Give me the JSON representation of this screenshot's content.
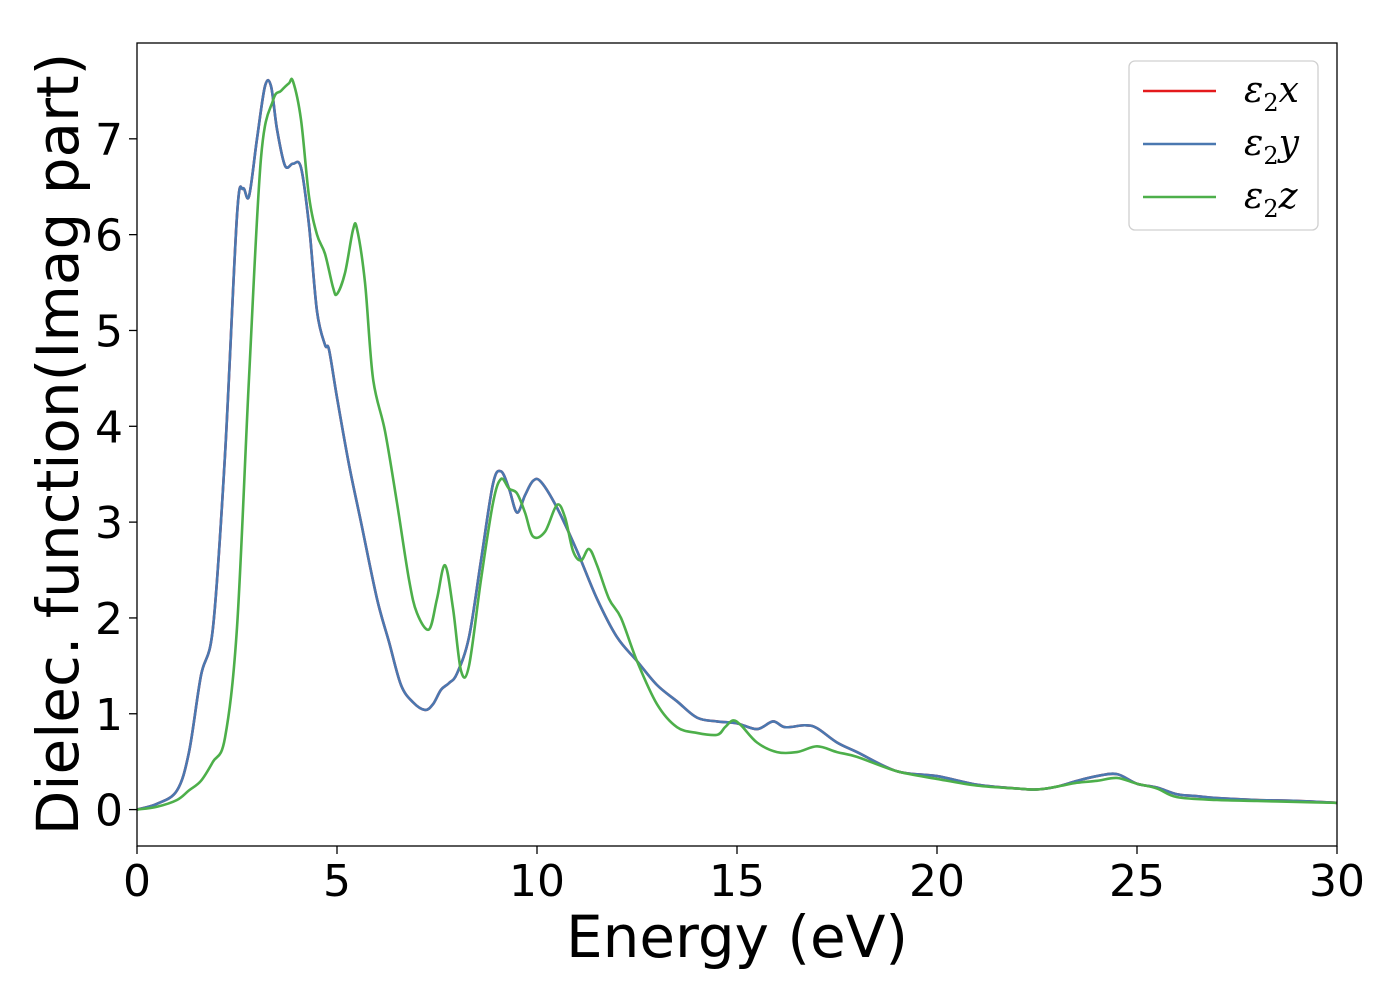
{
  "chart_data": {
    "type": "line",
    "title": "",
    "xlabel": "Energy (eV)",
    "ylabel": "Dielec. function(Imag part)",
    "xlim": [
      0,
      30
    ],
    "ylim": [
      -0.38,
      8.0
    ],
    "xticks": [
      "0",
      "5",
      "10",
      "15",
      "20",
      "25",
      "30"
    ],
    "yticks": [
      "0",
      "1",
      "2",
      "3",
      "4",
      "5",
      "6",
      "7"
    ],
    "grid": false,
    "legend_position": "top-right",
    "series": [
      {
        "name": "x",
        "color": "#e41a1c",
        "x": [
          0,
          0.5,
          1.0,
          1.3,
          1.6,
          1.9,
          2.2,
          2.5,
          2.65,
          2.8,
          3.0,
          3.2,
          3.35,
          3.5,
          3.7,
          3.9,
          4.1,
          4.3,
          4.5,
          4.7,
          4.8,
          5.0,
          5.3,
          5.6,
          6.0,
          6.3,
          6.6,
          6.9,
          7.2,
          7.4,
          7.6,
          7.8,
          8.0,
          8.3,
          8.6,
          8.9,
          9.1,
          9.3,
          9.5,
          9.7,
          9.9,
          10.1,
          10.5,
          11.0,
          11.5,
          12.0,
          12.5,
          13.0,
          13.5,
          14.0,
          14.5,
          15.0,
          15.5,
          15.9,
          16.2,
          16.7,
          17.0,
          17.5,
          18.0,
          19.0,
          20.0,
          21.0,
          22.0,
          22.5,
          23.0,
          23.5,
          24.0,
          24.5,
          25.0,
          25.5,
          26.0,
          26.5,
          27.0,
          28.0,
          29.0,
          30.0
        ],
        "values": [
          0.0,
          0.06,
          0.2,
          0.6,
          1.4,
          1.9,
          3.7,
          6.2,
          6.48,
          6.4,
          7.0,
          7.55,
          7.55,
          7.1,
          6.72,
          6.74,
          6.7,
          6.1,
          5.2,
          4.85,
          4.8,
          4.3,
          3.6,
          3.0,
          2.2,
          1.75,
          1.3,
          1.12,
          1.04,
          1.1,
          1.25,
          1.32,
          1.42,
          1.8,
          2.6,
          3.4,
          3.53,
          3.35,
          3.1,
          3.28,
          3.43,
          3.42,
          3.15,
          2.7,
          2.2,
          1.8,
          1.55,
          1.3,
          1.13,
          0.96,
          0.92,
          0.9,
          0.84,
          0.92,
          0.86,
          0.88,
          0.85,
          0.7,
          0.6,
          0.4,
          0.35,
          0.26,
          0.22,
          0.21,
          0.24,
          0.3,
          0.35,
          0.37,
          0.27,
          0.23,
          0.16,
          0.14,
          0.12,
          0.1,
          0.09,
          0.07
        ]
      },
      {
        "name": "y",
        "color": "#4a78b0",
        "x": [
          0,
          0.5,
          1.0,
          1.3,
          1.6,
          1.9,
          2.2,
          2.5,
          2.65,
          2.8,
          3.0,
          3.2,
          3.35,
          3.5,
          3.7,
          3.9,
          4.1,
          4.3,
          4.5,
          4.7,
          4.8,
          5.0,
          5.3,
          5.6,
          6.0,
          6.3,
          6.6,
          6.9,
          7.2,
          7.4,
          7.6,
          7.8,
          8.0,
          8.3,
          8.6,
          8.9,
          9.1,
          9.3,
          9.5,
          9.7,
          9.9,
          10.1,
          10.5,
          11.0,
          11.5,
          12.0,
          12.5,
          13.0,
          13.5,
          14.0,
          14.5,
          15.0,
          15.5,
          15.9,
          16.2,
          16.7,
          17.0,
          17.5,
          18.0,
          19.0,
          20.0,
          21.0,
          22.0,
          22.5,
          23.0,
          23.5,
          24.0,
          24.5,
          25.0,
          25.5,
          26.0,
          26.5,
          27.0,
          28.0,
          29.0,
          30.0
        ],
        "values": [
          0.0,
          0.06,
          0.2,
          0.6,
          1.4,
          1.9,
          3.7,
          6.2,
          6.48,
          6.4,
          7.0,
          7.55,
          7.55,
          7.1,
          6.72,
          6.74,
          6.7,
          6.1,
          5.2,
          4.85,
          4.8,
          4.3,
          3.6,
          3.0,
          2.2,
          1.75,
          1.3,
          1.12,
          1.04,
          1.1,
          1.25,
          1.32,
          1.42,
          1.8,
          2.6,
          3.4,
          3.53,
          3.35,
          3.1,
          3.28,
          3.43,
          3.42,
          3.15,
          2.7,
          2.2,
          1.8,
          1.55,
          1.3,
          1.13,
          0.96,
          0.92,
          0.9,
          0.84,
          0.92,
          0.86,
          0.88,
          0.85,
          0.7,
          0.6,
          0.4,
          0.35,
          0.26,
          0.22,
          0.21,
          0.24,
          0.3,
          0.35,
          0.37,
          0.27,
          0.23,
          0.16,
          0.14,
          0.12,
          0.1,
          0.09,
          0.07
        ]
      },
      {
        "name": "z",
        "color": "#4daf4a",
        "x": [
          0,
          0.5,
          1.0,
          1.3,
          1.6,
          1.9,
          2.2,
          2.5,
          2.8,
          3.1,
          3.4,
          3.6,
          3.8,
          3.9,
          4.1,
          4.3,
          4.5,
          4.7,
          4.9,
          5.0,
          5.2,
          5.4,
          5.5,
          5.7,
          5.9,
          6.2,
          6.5,
          6.8,
          7.0,
          7.3,
          7.5,
          7.7,
          7.9,
          8.1,
          8.3,
          8.6,
          8.9,
          9.1,
          9.3,
          9.5,
          9.7,
          9.9,
          10.2,
          10.5,
          10.7,
          10.9,
          11.1,
          11.3,
          11.5,
          11.8,
          12.1,
          12.5,
          13.0,
          13.5,
          14.0,
          14.5,
          14.7,
          14.9,
          15.1,
          15.5,
          16.0,
          16.5,
          17.0,
          17.5,
          18.0,
          19.0,
          20.0,
          21.0,
          22.0,
          22.5,
          23.0,
          23.5,
          24.0,
          24.5,
          25.0,
          25.5,
          26.0,
          27.0,
          28.0,
          29.0,
          30.0
        ],
        "values": [
          0.0,
          0.03,
          0.1,
          0.2,
          0.3,
          0.5,
          0.75,
          1.9,
          4.5,
          6.8,
          7.4,
          7.5,
          7.58,
          7.6,
          7.2,
          6.4,
          6.0,
          5.8,
          5.45,
          5.38,
          5.6,
          6.05,
          6.06,
          5.5,
          4.5,
          3.95,
          3.2,
          2.4,
          2.05,
          1.88,
          2.2,
          2.55,
          2.1,
          1.45,
          1.5,
          2.4,
          3.2,
          3.45,
          3.35,
          3.3,
          3.1,
          2.85,
          2.9,
          3.18,
          3.05,
          2.7,
          2.6,
          2.72,
          2.55,
          2.2,
          2.0,
          1.55,
          1.1,
          0.86,
          0.8,
          0.78,
          0.86,
          0.93,
          0.88,
          0.7,
          0.6,
          0.6,
          0.66,
          0.6,
          0.55,
          0.4,
          0.32,
          0.25,
          0.22,
          0.21,
          0.24,
          0.28,
          0.3,
          0.33,
          0.27,
          0.22,
          0.13,
          0.1,
          0.09,
          0.08,
          0.07
        ]
      }
    ]
  }
}
